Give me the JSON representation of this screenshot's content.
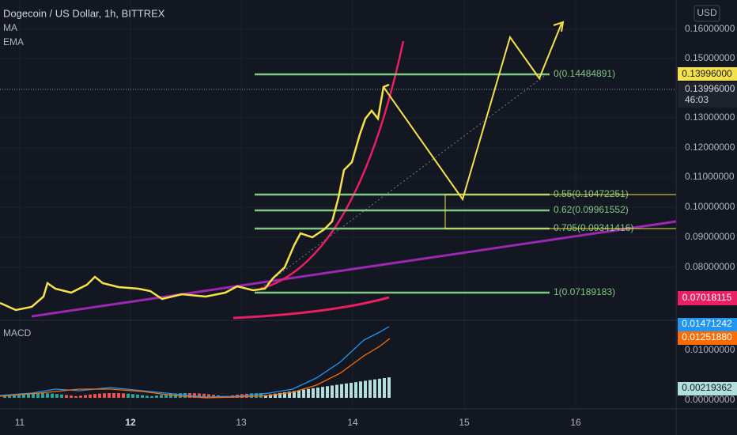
{
  "header": {
    "title": "Dogecoin / US Dollar, 1h, BITTREX",
    "indicators": [
      "MA",
      "EMA"
    ],
    "currency": "USD"
  },
  "price_axis": {
    "ticks": [
      "0.16000000",
      "0.15000000",
      "0.13000000",
      "0.12000000",
      "0.11000000",
      "0.10000000",
      "0.09000000",
      "0.08000000"
    ],
    "last_price": "0.13996000",
    "cursor_price": "0.13996000",
    "countdown": "46:03",
    "ema_price": "0.07018115"
  },
  "fib_levels": [
    "0(0.14484891)",
    "0.55(0.10472251)",
    "0.62(0.09961552)",
    "0.705(0.09341416)",
    "1(0.07189183)"
  ],
  "macd": {
    "title": "MACD",
    "macd_value": "0.01471242",
    "signal_value": "0.01251880",
    "tick_top": "0.01000000",
    "histogram_value": "0.00219362",
    "tick_zero": "0.00000000"
  },
  "time_axis": [
    "11",
    "12",
    "13",
    "14",
    "15",
    "16"
  ]
}
